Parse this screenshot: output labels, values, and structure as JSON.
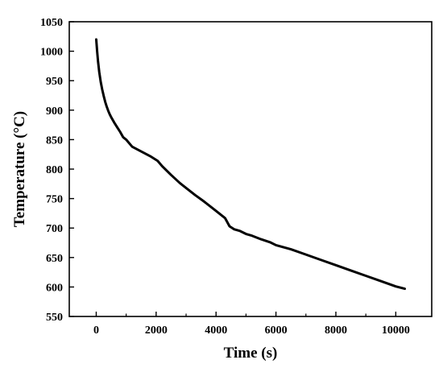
{
  "chart_data": {
    "type": "line",
    "title": "",
    "xlabel": "Time (s)",
    "ylabel": "Temperature (°C)",
    "xlim": [
      -900,
      11200
    ],
    "ylim": [
      550,
      1050
    ],
    "xticks": [
      0,
      2000,
      4000,
      6000,
      8000,
      10000
    ],
    "yticks": [
      550,
      600,
      650,
      700,
      750,
      800,
      850,
      900,
      950,
      1000,
      1050
    ],
    "grid": false,
    "legend": "none",
    "line_color": "#000000",
    "series": [
      {
        "x": [
          0,
          30,
          60,
          100,
          150,
          200,
          250,
          300,
          350,
          400,
          450,
          500,
          600,
          700,
          800,
          900,
          1000,
          1200,
          1500,
          1800,
          2050,
          2200,
          2500,
          2800,
          3000,
          3300,
          3600,
          4000,
          4300,
          4450,
          4600,
          4800,
          5000,
          5200,
          5500,
          5800,
          6000,
          6500,
          7000,
          7500,
          8000,
          8500,
          9000,
          9500,
          10000,
          10300
        ],
        "y": [
          1020,
          1000,
          983,
          965,
          948,
          935,
          924,
          914,
          906,
          899,
          893,
          888,
          879,
          871,
          863,
          854,
          850,
          838,
          830,
          822,
          814,
          805,
          790,
          776,
          768,
          756,
          745,
          729,
          717,
          703,
          698,
          695,
          690,
          687,
          681,
          676,
          671,
          664,
          655,
          646,
          637,
          628,
          619,
          610,
          601,
          597
        ]
      }
    ]
  }
}
